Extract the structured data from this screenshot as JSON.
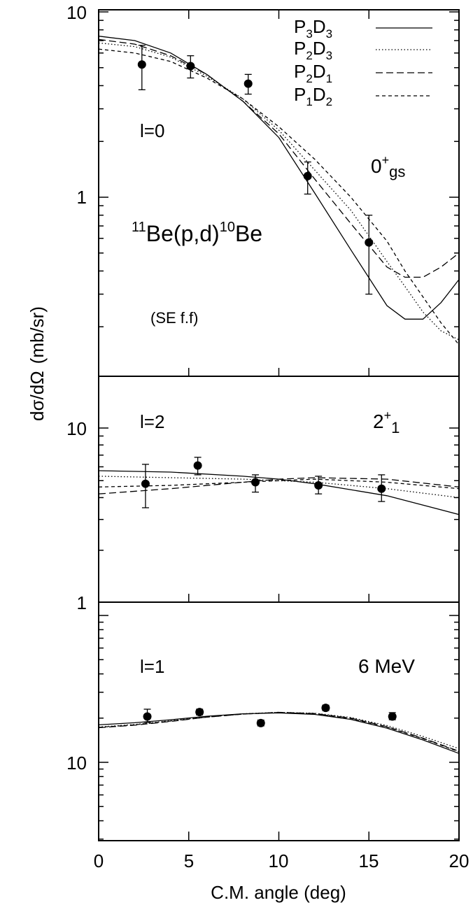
{
  "ylabel_main": "dσ/dΩ",
  "ylabel_unit": "(mb/sr)",
  "xlabel": "C.M. angle (deg)",
  "xticks": [
    "0",
    "5",
    "10",
    "15",
    "20"
  ],
  "legend": [
    {
      "base1": "P",
      "sub1": "3",
      "base2": "D",
      "sub2": "3"
    },
    {
      "base1": "P",
      "sub1": "2",
      "base2": "D",
      "sub2": "3"
    },
    {
      "base1": "P",
      "sub1": "2",
      "base2": "D",
      "sub2": "1"
    },
    {
      "base1": "P",
      "sub1": "1",
      "base2": "D",
      "sub2": "2"
    }
  ],
  "panel_labels": {
    "top_l": "l=0",
    "top_state_main": "0",
    "top_state_sup": "+",
    "top_state_sub": "gs",
    "reaction_pre_sup": "11",
    "reaction_mid": "Be(p,d)",
    "reaction_mid_sup": "10",
    "reaction_end": "Be",
    "formfactor": "(SE f.f)",
    "mid_l": "l=2",
    "mid_state_main": "2",
    "mid_state_sup": "+",
    "mid_state_sub": "1",
    "bot_l": "l=1",
    "bot_state": "6 MeV"
  },
  "yticks": {
    "top": [
      "10",
      "1"
    ],
    "middle": [
      "10",
      "1"
    ],
    "bottom": [
      "10"
    ]
  },
  "chart_data": [
    {
      "type": "line",
      "panel": "top",
      "yscale": "log",
      "xlim": [
        0,
        20
      ],
      "points_x": [
        2.4,
        5.1,
        8.3,
        11.6,
        15.0
      ],
      "points_y": [
        5.2,
        5.1,
        4.1,
        1.3,
        0.57
      ],
      "errors": [
        [
          3.8,
          6.6
        ],
        [
          4.4,
          5.8
        ],
        [
          3.6,
          4.6
        ],
        [
          1.04,
          1.55
        ],
        [
          0.3,
          0.8
        ]
      ],
      "series": [
        {
          "name": "P3D3",
          "style": "solid",
          "x": [
            0,
            2,
            4,
            6,
            8,
            10,
            12,
            14,
            16,
            17,
            18,
            19,
            20
          ],
          "y": [
            7.4,
            7.0,
            6.0,
            4.6,
            3.3,
            2.1,
            1.05,
            0.52,
            0.26,
            0.22,
            0.22,
            0.27,
            0.36
          ]
        },
        {
          "name": "P2D3",
          "style": "dotted",
          "x": [
            0,
            2,
            4,
            6,
            8,
            10,
            12,
            14,
            16,
            17,
            18,
            19,
            20
          ],
          "y": [
            6.8,
            6.5,
            5.7,
            4.5,
            3.4,
            2.3,
            1.4,
            0.85,
            0.45,
            0.33,
            0.24,
            0.19,
            0.17
          ]
        },
        {
          "name": "P2D1",
          "style": "dashed",
          "x": [
            0,
            2,
            4,
            6,
            8,
            10,
            12,
            14,
            16,
            17,
            18,
            19,
            20
          ],
          "y": [
            7.1,
            6.7,
            5.8,
            4.6,
            3.3,
            2.2,
            1.25,
            0.72,
            0.42,
            0.37,
            0.37,
            0.42,
            0.5
          ]
        },
        {
          "name": "P1D2",
          "style": "dashed-short",
          "x": [
            0,
            2,
            4,
            6,
            8,
            10,
            12,
            14,
            16,
            17,
            18,
            19,
            20
          ],
          "y": [
            6.3,
            6.0,
            5.4,
            4.4,
            3.4,
            2.4,
            1.6,
            1.0,
            0.58,
            0.4,
            0.29,
            0.21,
            0.16
          ]
        }
      ]
    },
    {
      "type": "line",
      "panel": "middle",
      "yscale": "log",
      "xlim": [
        0,
        20
      ],
      "points_x": [
        2.6,
        5.5,
        8.7,
        12.2,
        15.7
      ],
      "points_y": [
        4.8,
        6.1,
        4.9,
        4.7,
        4.5
      ],
      "errors": [
        [
          3.5,
          6.2
        ],
        [
          5.4,
          6.8
        ],
        [
          4.3,
          5.4
        ],
        [
          4.2,
          5.3
        ],
        [
          3.8,
          5.4
        ]
      ],
      "series": [
        {
          "name": "P3D3",
          "style": "solid",
          "x": [
            0,
            4,
            8,
            10,
            12,
            16,
            20
          ],
          "y": [
            5.7,
            5.6,
            5.3,
            5.1,
            4.8,
            4.1,
            3.2
          ]
        },
        {
          "name": "P2D3",
          "style": "dotted",
          "x": [
            0,
            4,
            8,
            10,
            12,
            16,
            20
          ],
          "y": [
            5.3,
            5.2,
            5.1,
            5.0,
            4.9,
            4.5,
            4.0
          ]
        },
        {
          "name": "P2D1",
          "style": "dashed",
          "x": [
            0,
            4,
            8,
            10,
            12,
            16,
            20
          ],
          "y": [
            4.2,
            4.5,
            4.9,
            5.1,
            5.2,
            5.1,
            4.6
          ]
        },
        {
          "name": "P1D2",
          "style": "dashed-short",
          "x": [
            0,
            4,
            8,
            10,
            12,
            16,
            20
          ],
          "y": [
            4.6,
            4.7,
            4.9,
            5.0,
            5.1,
            4.9,
            4.5
          ]
        }
      ]
    },
    {
      "type": "line",
      "panel": "bottom",
      "yscale": "log",
      "xlim": [
        0,
        20
      ],
      "points_x": [
        2.7,
        5.6,
        9.0,
        12.6,
        16.3
      ],
      "points_y": [
        20.5,
        22.0,
        18.5,
        23.5,
        20.5
      ],
      "errors": [
        [
          18.7,
          23.0
        ],
        [
          21.0,
          23.0
        ],
        [
          17.7,
          19.4
        ],
        [
          22.5,
          24.5
        ],
        [
          19.5,
          21.8
        ]
      ],
      "series": [
        {
          "name": "P3D3",
          "style": "solid",
          "x": [
            0,
            2,
            4,
            6,
            8,
            10,
            12,
            14,
            16,
            18,
            20
          ],
          "y": [
            18.0,
            18.6,
            19.5,
            20.6,
            21.4,
            21.7,
            21.2,
            19.6,
            17.1,
            14.2,
            11.5
          ]
        },
        {
          "name": "P2D3",
          "style": "dotted",
          "x": [
            0,
            2,
            4,
            6,
            8,
            10,
            12,
            14,
            16,
            18,
            20
          ],
          "y": [
            17.4,
            18.1,
            19.2,
            20.4,
            21.4,
            21.9,
            21.6,
            20.2,
            17.8,
            15.0,
            12.4
          ]
        },
        {
          "name": "P2D1",
          "style": "dashed",
          "x": [
            0,
            2,
            4,
            6,
            8,
            10,
            12,
            14,
            16,
            18,
            20
          ],
          "y": [
            17.2,
            17.9,
            19.0,
            20.3,
            21.3,
            21.9,
            21.5,
            20.0,
            17.5,
            14.6,
            11.9
          ]
        },
        {
          "name": "P1D2",
          "style": "dashed-short",
          "x": [
            0,
            2,
            4,
            6,
            8,
            10,
            12,
            14,
            16,
            18,
            20
          ],
          "y": [
            17.3,
            18.0,
            19.1,
            20.3,
            21.3,
            21.8,
            21.4,
            19.9,
            17.4,
            14.5,
            11.8
          ]
        }
      ]
    }
  ]
}
